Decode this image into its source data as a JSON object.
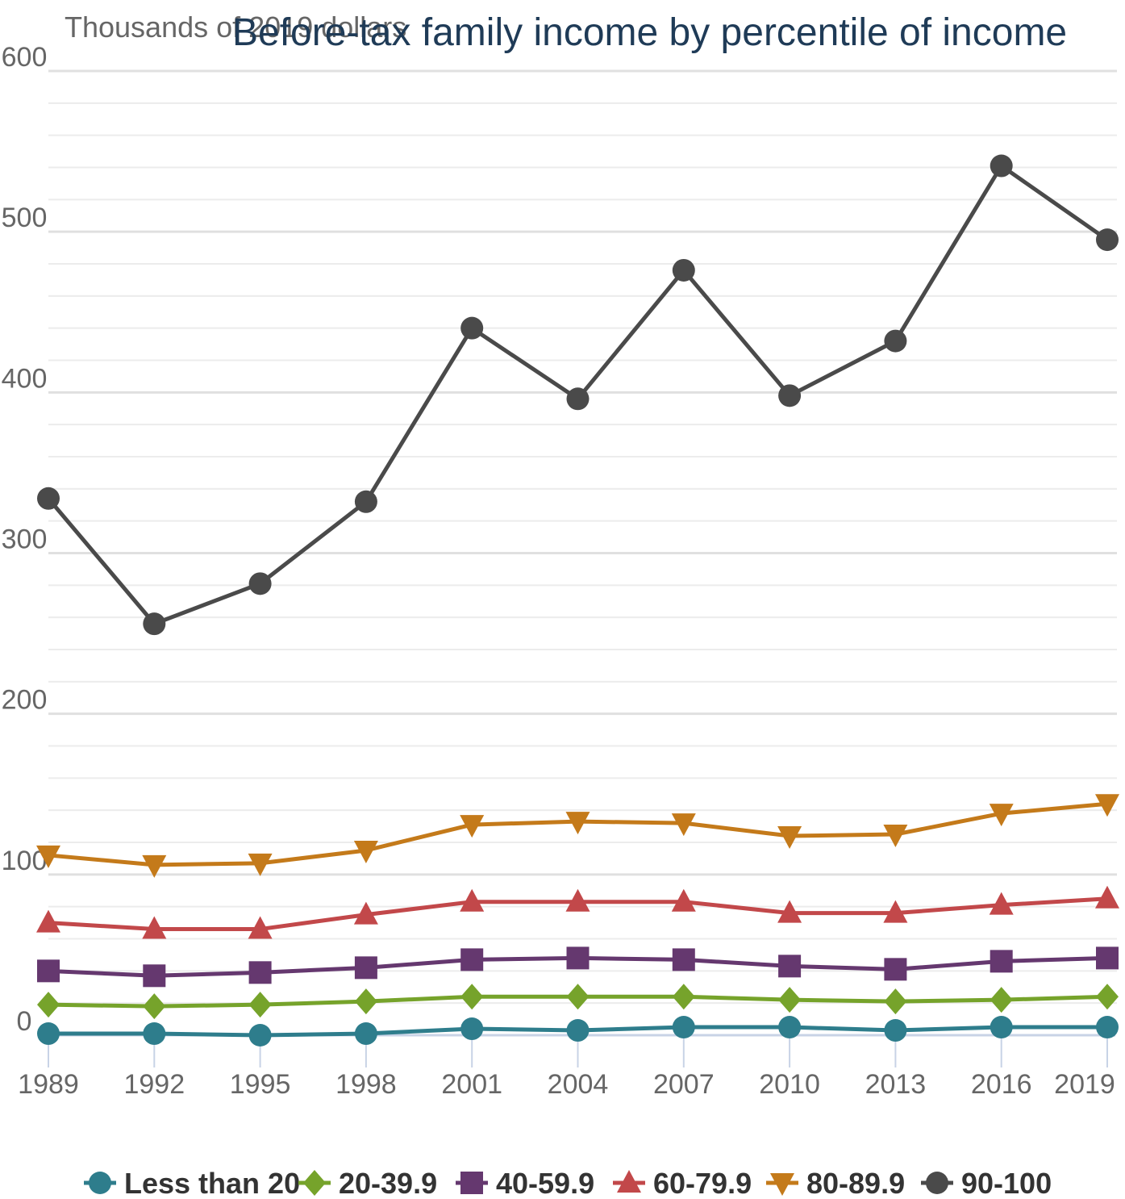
{
  "chart_data": {
    "type": "line",
    "title": "Before-tax family income by percentile of income",
    "ylabel": "Thousands of 2019 dollars",
    "xlabel": "",
    "categories": [
      "1989",
      "1992",
      "1995",
      "1998",
      "2001",
      "2004",
      "2007",
      "2010",
      "2013",
      "2016",
      "2019"
    ],
    "ylim": [
      0,
      600
    ],
    "yticks": [
      "0",
      "100",
      "200",
      "300",
      "400",
      "500",
      "600"
    ],
    "grid": true,
    "legend_position": "bottom",
    "series": [
      {
        "name": "Less than 20",
        "color": "#2e7d8c",
        "marker": "circle",
        "values": [
          1,
          1,
          0,
          1,
          4,
          3,
          5,
          5,
          3,
          5,
          5
        ]
      },
      {
        "name": "20-39.9",
        "color": "#76a32b",
        "marker": "diamond",
        "values": [
          19,
          18,
          19,
          21,
          24,
          24,
          24,
          22,
          21,
          22,
          24
        ]
      },
      {
        "name": "40-59.9",
        "color": "#65386f",
        "marker": "square",
        "values": [
          40,
          37,
          39,
          42,
          47,
          48,
          47,
          43,
          41,
          46,
          48
        ]
      },
      {
        "name": "60-79.9",
        "color": "#c2484a",
        "marker": "triangle-up",
        "values": [
          70,
          66,
          66,
          75,
          83,
          83,
          83,
          76,
          76,
          81,
          85
        ]
      },
      {
        "name": "80-89.9",
        "color": "#c47a1a",
        "marker": "triangle-down",
        "values": [
          112,
          106,
          107,
          115,
          131,
          133,
          132,
          124,
          125,
          138,
          144
        ]
      },
      {
        "name": "90-100",
        "color": "#4a4a4a",
        "marker": "circle",
        "values": [
          334,
          256,
          281,
          332,
          440,
          396,
          476,
          398,
          432,
          541,
          495
        ]
      }
    ]
  }
}
